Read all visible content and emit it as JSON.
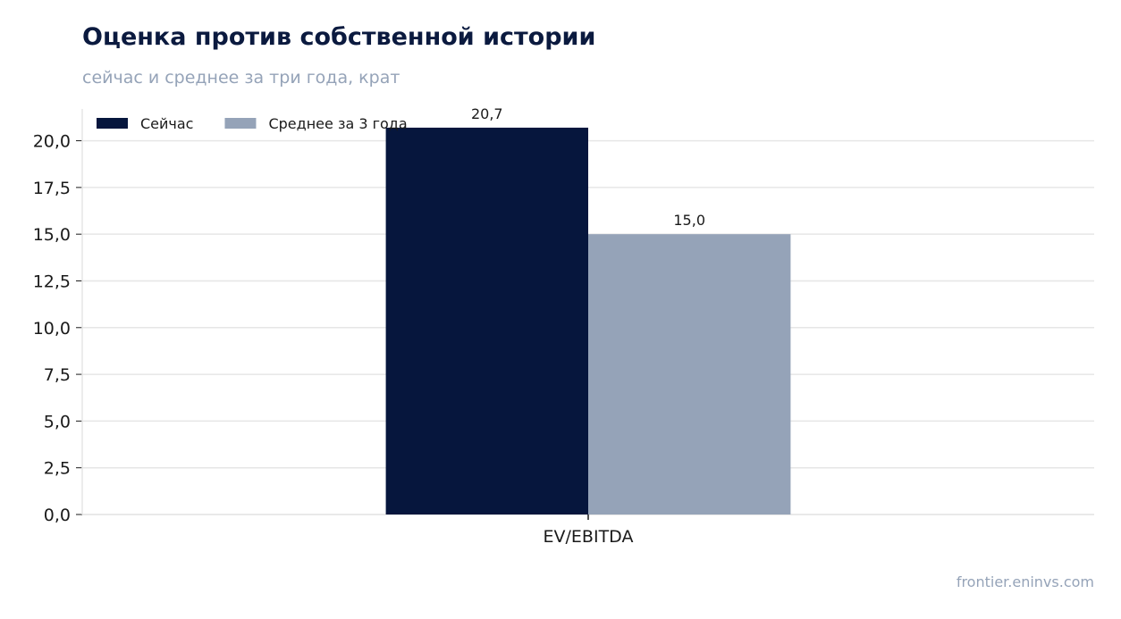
{
  "title": "Оценка против собственной истории",
  "subtitle": "сейчас и среднее за три года, крат",
  "source": "frontier.eninvs.com",
  "colors": {
    "current": "#06163d",
    "average": "#95a3b8",
    "grid": "#e6e6e6"
  },
  "chart_data": {
    "type": "bar",
    "title": "Оценка против собственной истории",
    "subtitle": "сейчас и среднее за три года, крат",
    "xlabel": "",
    "ylabel": "",
    "categories": [
      "EV/EBITDA"
    ],
    "series": [
      {
        "name": "Сейчас",
        "values": [
          20.7
        ],
        "value_labels": [
          "20,7"
        ],
        "color": "#06163d"
      },
      {
        "name": "Среднее за 3 года",
        "values": [
          15.0
        ],
        "value_labels": [
          "15,0"
        ],
        "color": "#95a3b8"
      }
    ],
    "ylim": [
      0,
      21.7
    ],
    "yticks": [
      0,
      2.5,
      5,
      7.5,
      10,
      12.5,
      15,
      17.5,
      20
    ],
    "ytick_labels": [
      "0,0",
      "2,5",
      "5,0",
      "7,5",
      "10,0",
      "12,5",
      "15,0",
      "17,5",
      "20,0"
    ],
    "grid": true,
    "legend": "top-left"
  }
}
